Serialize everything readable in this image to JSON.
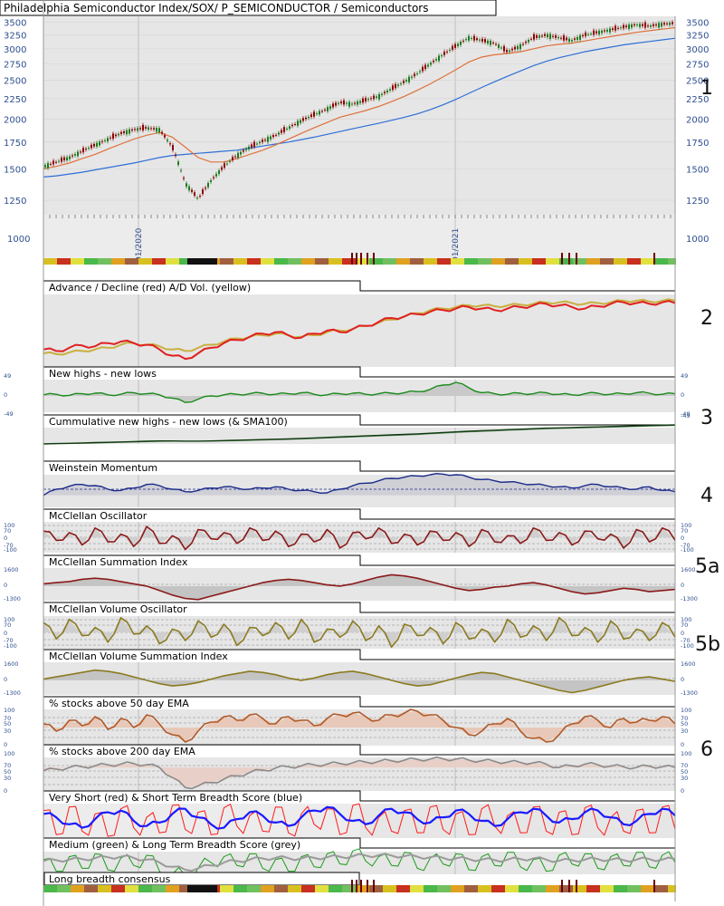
{
  "colors": {
    "plot_bg": "#e6e6e6",
    "grid": "#bfbfbf",
    "axis_text": "#2f4f8f",
    "candle_up": "#1f7a1f",
    "candle_down": "#8b0000",
    "ema_short": "#e0703a",
    "ema_long": "#2f6fd6",
    "ad_line": "#e02020",
    "ad_vol": "#c8b040",
    "nhnl": "#1a8a1a",
    "momentum": "#1a2a8a",
    "mcclellan": "#8b1a1a",
    "mc_volume": "#8a7a20",
    "pct50": "#b05a28",
    "pct200": "#8a8a8a",
    "score_red": "#ff1a1a",
    "score_blue": "#1a1aff",
    "score_green": "#1a9a1a",
    "score_grey": "#9a9a9a"
  },
  "chart_data": [
    {
      "type": "line",
      "title": "Philadelphia Semiconductor Index/SOX/ P_SEMICONDUCTOR / Semiconductors",
      "panel_number": "1",
      "x_labels": [
        "01/2020",
        "01/2021"
      ],
      "y_ticks": [
        3500,
        3250,
        3000,
        2750,
        2500,
        2250,
        2000,
        1750,
        1500,
        1250
      ],
      "volume_tick": 1000,
      "series": [
        {
          "values": [
            1520,
            1560,
            1600,
            1660,
            1720,
            1780,
            1840,
            1880,
            1900,
            1880,
            1700,
            1380,
            1260,
            1400,
            1520,
            1620,
            1700,
            1760,
            1820,
            1900,
            1980,
            2050,
            2120,
            2200,
            2180,
            2230,
            2280,
            2380,
            2480,
            2600,
            2750,
            2900,
            3050,
            3200,
            3150,
            3100,
            2950,
            3050,
            3200,
            3250,
            3200,
            3150,
            3250,
            3300,
            3350,
            3400,
            3450,
            3420,
            3460,
            3480
          ]
        },
        {
          "values": [
            1500,
            1520,
            1550,
            1590,
            1630,
            1680,
            1730,
            1780,
            1820,
            1850,
            1800,
            1700,
            1600,
            1560,
            1560,
            1590,
            1630,
            1670,
            1720,
            1780,
            1840,
            1900,
            1960,
            2020,
            2060,
            2100,
            2150,
            2210,
            2280,
            2360,
            2450,
            2550,
            2660,
            2780,
            2860,
            2900,
            2920,
            2950,
            3000,
            3050,
            3080,
            3100,
            3140,
            3180,
            3220,
            3260,
            3300,
            3330,
            3360,
            3390
          ]
        },
        {
          "values": [
            1430,
            1440,
            1455,
            1470,
            1490,
            1510,
            1530,
            1550,
            1575,
            1600,
            1620,
            1630,
            1640,
            1650,
            1660,
            1670,
            1690,
            1710,
            1730,
            1750,
            1775,
            1800,
            1830,
            1860,
            1890,
            1920,
            1950,
            1985,
            2020,
            2060,
            2110,
            2170,
            2240,
            2320,
            2400,
            2480,
            2560,
            2640,
            2720,
            2790,
            2850,
            2900,
            2950,
            2990,
            3030,
            3070,
            3100,
            3130,
            3160,
            3190
          ]
        }
      ]
    },
    {
      "type": "line",
      "title": "Advance / Decline (red) A/D Vol. (yellow)",
      "panel_number": "2",
      "series": [
        {
          "values": [
            20,
            18,
            22,
            25,
            24,
            28,
            30,
            28,
            26,
            20,
            12,
            8,
            15,
            22,
            28,
            32,
            36,
            40,
            42,
            38,
            35,
            40,
            44,
            42,
            46,
            50,
            55,
            60,
            62,
            65,
            68,
            70,
            72,
            74,
            72,
            70,
            72,
            74,
            76,
            78,
            76,
            74,
            72,
            75,
            78,
            80,
            79,
            78,
            80,
            79
          ]
        },
        {
          "values": [
            15,
            14,
            16,
            18,
            20,
            22,
            26,
            28,
            26,
            24,
            20,
            18,
            22,
            26,
            30,
            34,
            36,
            38,
            40,
            38,
            36,
            38,
            42,
            44,
            46,
            50,
            54,
            58,
            62,
            66,
            70,
            72,
            74,
            76,
            76,
            75,
            76,
            77,
            78,
            80,
            80,
            79,
            78,
            79,
            80,
            82,
            82,
            81,
            82,
            82
          ]
        }
      ]
    },
    {
      "type": "line",
      "title": "New highs - new lows",
      "panel_number": "3",
      "y_ticks": [
        49,
        0,
        -49
      ],
      "series": [
        {
          "values": [
            2,
            3,
            1,
            4,
            5,
            2,
            3,
            6,
            4,
            2,
            -4,
            -12,
            -6,
            0,
            2,
            3,
            4,
            5,
            3,
            4,
            6,
            3,
            2,
            4,
            5,
            3,
            4,
            5,
            6,
            8,
            12,
            20,
            25,
            15,
            6,
            4,
            3,
            5,
            4,
            6,
            3,
            2,
            4,
            5,
            3,
            4,
            6,
            5,
            3,
            4
          ]
        }
      ]
    },
    {
      "type": "line",
      "title": "Cummulative new highs - new lows (& SMA100)",
      "y_ticks": [
        -49
      ],
      "series": [
        {
          "values": [
            0,
            2,
            4,
            6,
            8,
            10,
            12,
            14,
            16,
            18,
            18,
            17,
            17,
            18,
            20,
            22,
            24,
            26,
            28,
            30,
            33,
            36,
            39,
            42,
            45,
            48,
            51,
            54,
            57,
            60,
            64,
            68,
            72,
            76,
            79,
            82,
            85,
            88,
            91,
            94,
            96,
            98,
            100,
            102,
            104,
            106,
            108,
            110,
            112,
            114
          ]
        },
        {
          "values": [
            0,
            1,
            2,
            3,
            5,
            7,
            9,
            11,
            13,
            15,
            16,
            16,
            16,
            17,
            18,
            19,
            21,
            23,
            25,
            27,
            29,
            32,
            35,
            38,
            41,
            44,
            47,
            50,
            53,
            56,
            60,
            64,
            68,
            72,
            75,
            78,
            81,
            84,
            87,
            90,
            92,
            94,
            96,
            98,
            100,
            102,
            104,
            106,
            108,
            110
          ]
        }
      ]
    },
    {
      "type": "area",
      "title": "Weinstein Momentum",
      "panel_number": "4",
      "series": [
        {
          "values": [
            20,
            30,
            35,
            38,
            36,
            30,
            28,
            32,
            38,
            36,
            30,
            26,
            28,
            32,
            34,
            32,
            30,
            32,
            34,
            30,
            28,
            26,
            24,
            30,
            36,
            40,
            44,
            48,
            50,
            52,
            54,
            55,
            54,
            50,
            46,
            44,
            42,
            40,
            38,
            36,
            34,
            32,
            36,
            38,
            34,
            32,
            30,
            34,
            28,
            26
          ]
        }
      ]
    },
    {
      "type": "line",
      "title": "McClellan Oscillator",
      "panel_number": "5a",
      "y_ticks": [
        100,
        70,
        0,
        -70,
        -100
      ],
      "series": [
        {
          "values": [
            40,
            -20,
            30,
            -50,
            60,
            -30,
            20,
            -60,
            70,
            -40,
            10,
            -80,
            50,
            -10,
            30,
            -40,
            60,
            -20,
            40,
            -60,
            20,
            -30,
            50,
            -70,
            30,
            -10,
            60,
            -40,
            20,
            -50,
            40,
            -20,
            30,
            -60,
            50,
            -30,
            10,
            -40,
            60,
            -20,
            30,
            -50,
            40,
            -10,
            20,
            -70,
            50,
            -30,
            60,
            -20
          ]
        }
      ]
    },
    {
      "type": "area",
      "title": "McClellan Summation Index",
      "y_ticks": [
        1600,
        0,
        -1300
      ],
      "series": [
        {
          "values": [
            200,
            300,
            400,
            600,
            700,
            600,
            400,
            200,
            0,
            -400,
            -800,
            -1100,
            -1200,
            -900,
            -600,
            -300,
            0,
            300,
            500,
            600,
            500,
            300,
            100,
            0,
            200,
            500,
            800,
            1000,
            900,
            700,
            400,
            100,
            -200,
            -400,
            -300,
            -100,
            0,
            200,
            300,
            100,
            -200,
            -500,
            -700,
            -600,
            -400,
            -200,
            -300,
            -500,
            -400,
            -300
          ]
        }
      ]
    },
    {
      "type": "line",
      "title": "McClellan Volume Oscillator",
      "panel_number": "5b",
      "y_ticks": [
        100,
        70,
        0,
        -70,
        -100
      ],
      "series": [
        {
          "values": [
            60,
            -40,
            80,
            -20,
            30,
            -60,
            90,
            -10,
            40,
            -70,
            20,
            -50,
            70,
            -30,
            50,
            -80,
            30,
            -20,
            60,
            -40,
            80,
            -60,
            20,
            -30,
            70,
            -50,
            40,
            -90,
            50,
            -20,
            30,
            -70,
            60,
            -40,
            20,
            -60,
            80,
            -30,
            40,
            -50,
            90,
            -20,
            30,
            -60,
            70,
            -40,
            20,
            -50,
            60,
            -30
          ]
        }
      ]
    },
    {
      "type": "area",
      "title": "McClellan Volume Summation Index",
      "y_ticks": [
        1600,
        0,
        -1300
      ],
      "series": [
        {
          "values": [
            100,
            300,
            500,
            700,
            900,
            800,
            600,
            300,
            0,
            -300,
            -500,
            -400,
            -200,
            100,
            400,
            600,
            800,
            700,
            500,
            200,
            0,
            200,
            500,
            700,
            800,
            600,
            300,
            0,
            -300,
            -500,
            -400,
            -100,
            200,
            500,
            700,
            600,
            300,
            0,
            -300,
            -600,
            -900,
            -1100,
            -900,
            -600,
            -300,
            0,
            200,
            300,
            100,
            -100
          ]
        }
      ]
    },
    {
      "type": "area",
      "title": "% stocks above 50 day EMA",
      "y_ticks": [
        100,
        70,
        50,
        30,
        0
      ],
      "series": [
        {
          "values": [
            60,
            40,
            70,
            55,
            80,
            45,
            75,
            50,
            85,
            60,
            30,
            10,
            40,
            65,
            80,
            70,
            85,
            75,
            60,
            80,
            70,
            55,
            75,
            85,
            90,
            80,
            70,
            85,
            90,
            95,
            85,
            70,
            50,
            30,
            40,
            60,
            75,
            40,
            20,
            10,
            30,
            60,
            80,
            70,
            50,
            75,
            65,
            70,
            80,
            60
          ]
        }
      ]
    },
    {
      "type": "area",
      "title": "% stocks above 200 day EMA",
      "panel_number": "6",
      "y_ticks": [
        100,
        70,
        50,
        30,
        0
      ],
      "series": [
        {
          "values": [
            60,
            65,
            70,
            72,
            75,
            78,
            80,
            82,
            78,
            70,
            40,
            10,
            15,
            25,
            35,
            45,
            55,
            62,
            68,
            72,
            75,
            78,
            80,
            82,
            84,
            86,
            88,
            90,
            92,
            94,
            95,
            96,
            95,
            92,
            90,
            88,
            86,
            85,
            84,
            80,
            70,
            75,
            80,
            78,
            74,
            72,
            70,
            74,
            72,
            70
          ]
        }
      ]
    },
    {
      "type": "line",
      "title": "Very Short (red) & Short Term Breadth Score (blue)",
      "series": [
        {
          "values": [
            80,
            10,
            90,
            20,
            70,
            5,
            85,
            30,
            60,
            15,
            95,
            25,
            75,
            10,
            88,
            35,
            65,
            20,
            90,
            15,
            70,
            40,
            85,
            10,
            95,
            30,
            60,
            20,
            80,
            15,
            90,
            25,
            70,
            10,
            85,
            35,
            65,
            15,
            90,
            20,
            75,
            10,
            88,
            30,
            60,
            20,
            80,
            15,
            90,
            25
          ]
        },
        {
          "values": [
            70,
            60,
            40,
            30,
            55,
            75,
            80,
            50,
            35,
            45,
            70,
            85,
            60,
            40,
            30,
            55,
            75,
            65,
            45,
            35,
            60,
            80,
            90,
            70,
            50,
            40,
            65,
            85,
            75,
            55,
            45,
            60,
            80,
            70,
            50,
            35,
            55,
            75,
            85,
            65,
            45,
            55,
            75,
            80,
            60,
            40,
            50,
            70,
            85,
            65
          ]
        }
      ]
    },
    {
      "type": "line",
      "title": "Medium (green) & Long Term Breadth Score (grey)",
      "series": [
        {
          "values": [
            60,
            20,
            70,
            30,
            80,
            25,
            65,
            40,
            75,
            20,
            10,
            5,
            30,
            50,
            70,
            40,
            80,
            30,
            60,
            20,
            70,
            35,
            80,
            45,
            90,
            55,
            70,
            40,
            85,
            30,
            65,
            45,
            80,
            25,
            70,
            40,
            85,
            35,
            60,
            20,
            75,
            45,
            80,
            30,
            70,
            40,
            85,
            35,
            75,
            50
          ]
        },
        {
          "values": [
            55,
            58,
            60,
            62,
            65,
            68,
            70,
            66,
            60,
            50,
            35,
            25,
            30,
            40,
            50,
            55,
            60,
            64,
            66,
            65,
            64,
            66,
            68,
            70,
            72,
            74,
            75,
            74,
            72,
            70,
            68,
            66,
            64,
            62,
            60,
            58,
            60,
            62,
            64,
            60,
            56,
            58,
            60,
            62,
            60,
            58,
            60,
            62,
            60,
            62
          ]
        }
      ]
    },
    {
      "type": "heatmap",
      "title": "Long breadth consensus",
      "values": []
    }
  ],
  "volume_strip_title": ""
}
